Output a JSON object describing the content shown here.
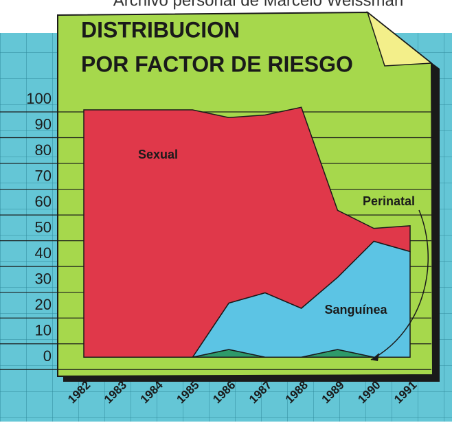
{
  "chart_data": {
    "type": "stacked_area",
    "caption": "Archivo personal de Marcelo Weissman",
    "title": [
      "DISTRIBUCION",
      "POR  FACTOR  DE RIESGO"
    ],
    "categories": [
      "1982",
      "1983",
      "1984",
      "1985",
      "1986",
      "1987",
      "1988",
      "1989",
      "1990",
      "1991"
    ],
    "series": [
      {
        "name": "Perinatal",
        "color": "#2e9a6a",
        "values": [
          0,
          0,
          0,
          0,
          3,
          0,
          0,
          3,
          0,
          0
        ]
      },
      {
        "name": "Sanguínea",
        "color": "#5cc4e4",
        "values": [
          0,
          0,
          0,
          0,
          18,
          25,
          19,
          28,
          45,
          41
        ]
      },
      {
        "name": "Sexual",
        "color": "#e0384a",
        "values": [
          96,
          96,
          96,
          96,
          72,
          69,
          78,
          26,
          5,
          10
        ]
      }
    ],
    "ylim": [
      -5,
      100
    ],
    "yticks": [
      0,
      10,
      20,
      30,
      40,
      50,
      60,
      70,
      80,
      90,
      100
    ]
  }
}
